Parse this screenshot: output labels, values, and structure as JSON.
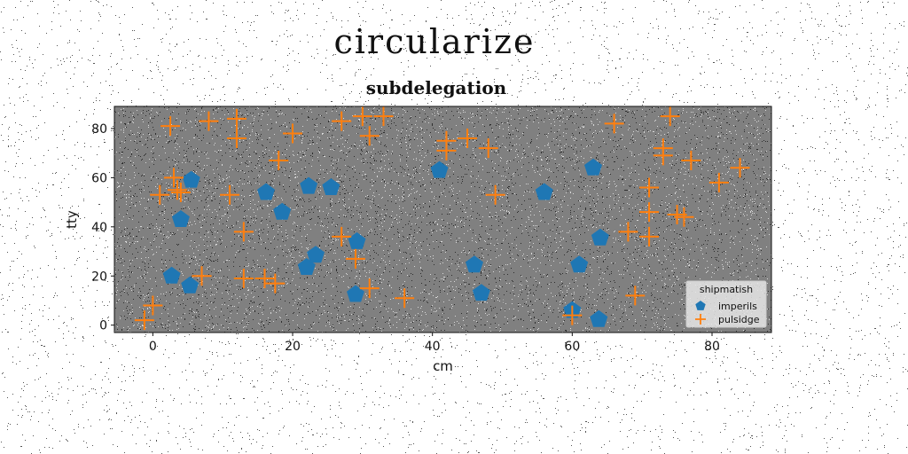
{
  "figure": {
    "suptitle": "circularize"
  },
  "chart_data": {
    "type": "scatter",
    "title": "subdelegation",
    "xlabel": "cm",
    "ylabel": "tty",
    "xlim": [
      -5.5,
      88.5
    ],
    "ylim": [
      -3,
      89
    ],
    "xticks": [
      0,
      20,
      40,
      60,
      80
    ],
    "yticks": [
      0,
      20,
      40,
      60,
      80
    ],
    "grid": false,
    "background": "#808080",
    "legend": {
      "title": "shipmatish",
      "placement": "lower-right"
    },
    "series": [
      {
        "name": "imperils",
        "marker": "pentagon",
        "color": "#1f77b4",
        "points": [
          [
            2.7,
            20
          ],
          [
            4,
            43
          ],
          [
            5.5,
            59
          ],
          [
            5.3,
            16
          ],
          [
            16.2,
            54
          ],
          [
            18.5,
            46
          ],
          [
            22.3,
            56.5
          ],
          [
            25.5,
            56
          ],
          [
            22,
            23.5
          ],
          [
            23.3,
            28.5
          ],
          [
            29,
            12.5
          ],
          [
            29.2,
            34
          ],
          [
            41,
            63
          ],
          [
            46,
            24.5
          ],
          [
            47,
            13
          ],
          [
            56,
            54
          ],
          [
            60,
            6
          ],
          [
            61,
            24.5
          ],
          [
            63,
            64
          ],
          [
            63.8,
            2.3
          ],
          [
            64,
            35.5
          ]
        ]
      },
      {
        "name": "pulsidge",
        "marker": "plus",
        "color": "#ff7f0e",
        "points": [
          [
            -1.2,
            2
          ],
          [
            0,
            8
          ],
          [
            1,
            53
          ],
          [
            2.5,
            81
          ],
          [
            3,
            60
          ],
          [
            3.5,
            55
          ],
          [
            4,
            54
          ],
          [
            7,
            20
          ],
          [
            8,
            83
          ],
          [
            11,
            53
          ],
          [
            12,
            84
          ],
          [
            12,
            76
          ],
          [
            13,
            38
          ],
          [
            13,
            19
          ],
          [
            16,
            19
          ],
          [
            17.5,
            17
          ],
          [
            18,
            67
          ],
          [
            20,
            78
          ],
          [
            27,
            83
          ],
          [
            27,
            36
          ],
          [
            29,
            27
          ],
          [
            30,
            85
          ],
          [
            31,
            77
          ],
          [
            31,
            15
          ],
          [
            33,
            85
          ],
          [
            36,
            11
          ],
          [
            42,
            71
          ],
          [
            42,
            75
          ],
          [
            45,
            76
          ],
          [
            48,
            72
          ],
          [
            49,
            53
          ],
          [
            60,
            4
          ],
          [
            66,
            82
          ],
          [
            68,
            38
          ],
          [
            69,
            12
          ],
          [
            71,
            56
          ],
          [
            71,
            46
          ],
          [
            71,
            36
          ],
          [
            73,
            72
          ],
          [
            73,
            69
          ],
          [
            74,
            85
          ],
          [
            75,
            45
          ],
          [
            76,
            44
          ],
          [
            77,
            67
          ],
          [
            81,
            58
          ],
          [
            84,
            64
          ]
        ]
      }
    ]
  }
}
